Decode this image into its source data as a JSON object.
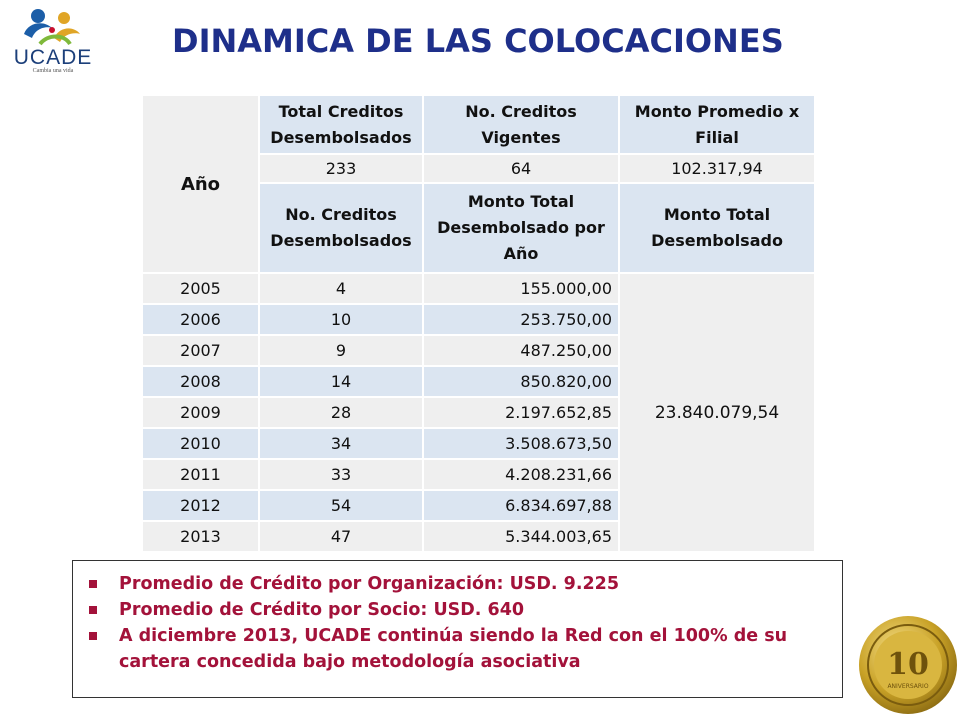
{
  "logo": {
    "name": "UCADE",
    "tagline": "Cambia una vida"
  },
  "title": "DINAMICA DE LAS COLOCACIONES",
  "table": {
    "year_header": "Año",
    "top_headers": [
      "Total Creditos Desembolsados",
      "No. Creditos Vigentes",
      "Monto Promedio x Filial"
    ],
    "top_values": [
      "233",
      "64",
      "102.317,94"
    ],
    "sub_headers": [
      "No. Creditos Desembolsados",
      "Monto Total Desembolsado por Año",
      "Monto Total Desembolsado"
    ],
    "rows": [
      {
        "year": "2005",
        "count": "4",
        "amount": "155.000,00"
      },
      {
        "year": "2006",
        "count": "10",
        "amount": "253.750,00"
      },
      {
        "year": "2007",
        "count": "9",
        "amount": "487.250,00"
      },
      {
        "year": "2008",
        "count": "14",
        "amount": "850.820,00"
      },
      {
        "year": "2009",
        "count": "28",
        "amount": "2.197.652,85"
      },
      {
        "year": "2010",
        "count": "34",
        "amount": "3.508.673,50"
      },
      {
        "year": "2011",
        "count": "33",
        "amount": "4.208.231,66"
      },
      {
        "year": "2012",
        "count": "54",
        "amount": "6.834.697,88"
      },
      {
        "year": "2013",
        "count": "47",
        "amount": "5.344.003,65"
      }
    ],
    "total": "23.840.079,54"
  },
  "notes": [
    "Promedio de Crédito por Organización: USD. 9.225",
    "Promedio de Crédito por Socio: USD. 640",
    "A diciembre 2013, UCADE continúa siendo la Red con el 100% de su cartera concedida bajo metodología asociativa"
  ],
  "seal": {
    "number": "10",
    "label": "ANIVERSARIO"
  },
  "colors": {
    "title": "#1e2f8a",
    "notes": "#a3123a",
    "header_fill": "#dbe5f1",
    "row_fill": "#efefef",
    "seal_gold": "#c9a227"
  }
}
